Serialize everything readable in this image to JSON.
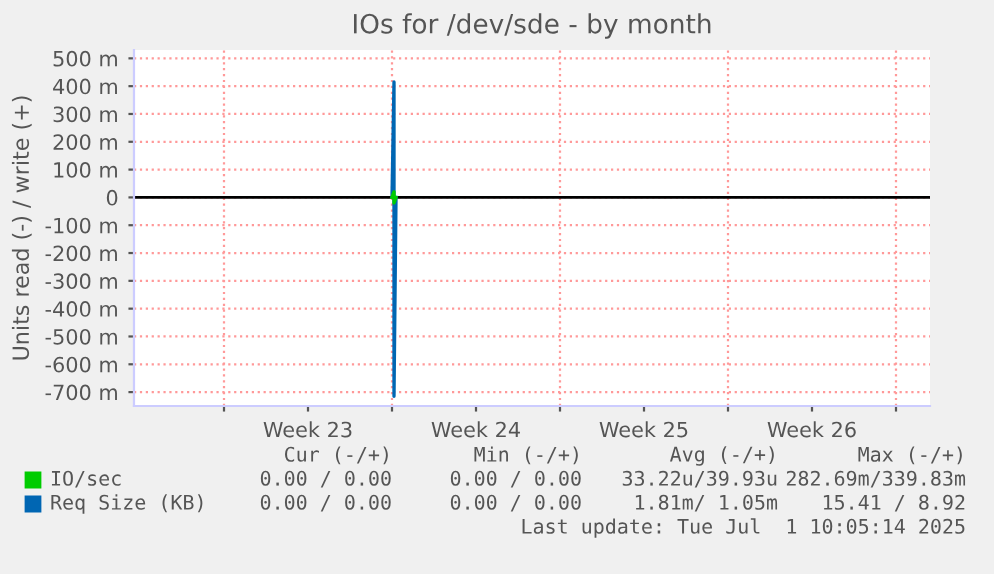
{
  "chart_data": {
    "type": "line",
    "title": "IOs for /dev/sde - by month",
    "ylabel": "Units read (-) / write (+)",
    "xlim": [
      "2025-05-29T06:00",
      "2025-07-01T10:00"
    ],
    "xticks": [
      {
        "value": "2025-06-02",
        "label": null
      },
      {
        "value": "2025-06-05T12:00",
        "label": "Week 23"
      },
      {
        "value": "2025-06-09",
        "label": null
      },
      {
        "value": "2025-06-12T12:00",
        "label": "Week 24"
      },
      {
        "value": "2025-06-16",
        "label": null
      },
      {
        "value": "2025-06-19T12:00",
        "label": "Week 25"
      },
      {
        "value": "2025-06-23",
        "label": null
      },
      {
        "value": "2025-06-26T12:00",
        "label": "Week 26"
      },
      {
        "value": "2025-06-30",
        "label": null
      }
    ],
    "ylim": [
      -750,
      530
    ],
    "yticks": [
      {
        "value": 500,
        "label": "500 m"
      },
      {
        "value": 400,
        "label": "400 m"
      },
      {
        "value": 300,
        "label": "300 m"
      },
      {
        "value": 200,
        "label": "200 m"
      },
      {
        "value": 100,
        "label": "100 m"
      },
      0,
      {
        "value": -100,
        "label": "-100 m"
      },
      {
        "value": -200,
        "label": "-200 m"
      },
      {
        "value": -300,
        "label": "-300 m"
      },
      {
        "value": -400,
        "label": "-400 m"
      },
      {
        "value": -500,
        "label": "-500 m"
      },
      {
        "value": -600,
        "label": "-600 m"
      },
      {
        "value": -700,
        "label": "-700 m"
      }
    ],
    "x": [
      "2025-06-09T00:00",
      "2025-06-09T02:00",
      "2025-06-09T02:00",
      "2025-06-09T04:00"
    ],
    "series": [
      {
        "name": "IO/sec",
        "color": "#00cc00",
        "values": [
          0,
          20,
          -20,
          0
        ]
      },
      {
        "name": "Req Size (KB)",
        "color": "#0066b3",
        "values": [
          0,
          415,
          -715,
          0
        ]
      }
    ],
    "ref_lines": [
      {
        "axis": "y",
        "value": 0,
        "color": "#000000"
      }
    ],
    "grid": true,
    "legend": "bottom",
    "marker": "none",
    "line_style": "solid",
    "annotations": [
      "Cur (-/+)",
      "Min (-/+)",
      "Avg (-/+)",
      "Max (-/+)",
      "0.00 / 0.00",
      "0.00 / 0.00",
      "33.22u/39.93u",
      "282.69m/339.83m",
      "0.00 / 0.00",
      "0.00 / 0.00",
      "1.81m/ 1.05m",
      "15.41 / 8.92",
      "Last update: Tue Jul  1 10:05:14 2025"
    ]
  }
}
